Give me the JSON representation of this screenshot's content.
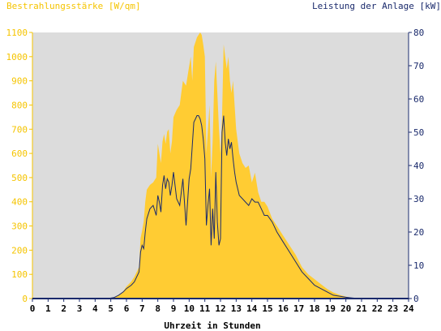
{
  "chart_data": {
    "type": "area",
    "title_left": "Bestrahlungsstärke [W/qm]",
    "title_right": "Leistung der Anlage [kW]",
    "xlabel": "Uhrzeit in Stunden",
    "x_ticks": [
      "0",
      "1",
      "2",
      "3",
      "4",
      "5",
      "6",
      "7",
      "8",
      "9",
      "10",
      "11",
      "12",
      "13",
      "14",
      "15",
      "16",
      "17",
      "18",
      "19",
      "20",
      "21",
      "22",
      "23",
      "24"
    ],
    "y_left_ticks": [
      "0",
      "100",
      "200",
      "300",
      "400",
      "500",
      "600",
      "700",
      "800",
      "900",
      "1000",
      "1100"
    ],
    "y_right_ticks": [
      "0",
      "10",
      "20",
      "30",
      "40",
      "50",
      "60",
      "70",
      "80"
    ],
    "xlim": [
      0,
      24
    ],
    "ylim_left": [
      0,
      1100
    ],
    "ylim_right": [
      0,
      80
    ],
    "grid": false,
    "colors": {
      "irradiance_fill": "#ffcc33",
      "power_line": "#1a2a6c",
      "plot_background": "#dcdcdc",
      "left_axis": "#f5c400",
      "right_axis": "#1a2a6c"
    },
    "series": [
      {
        "name": "Bestrahlungsstärke",
        "axis": "left",
        "x": [
          0,
          4.8,
          5.2,
          5.5,
          5.8,
          6.0,
          6.3,
          6.5,
          6.8,
          6.9,
          7.0,
          7.1,
          7.2,
          7.3,
          7.5,
          7.7,
          7.9,
          8.0,
          8.1,
          8.2,
          8.3,
          8.4,
          8.5,
          8.6,
          8.7,
          8.8,
          8.9,
          9.0,
          9.2,
          9.4,
          9.6,
          9.8,
          10.0,
          10.1,
          10.2,
          10.3,
          10.4,
          10.5,
          10.6,
          10.7,
          10.8,
          10.9,
          11.0,
          11.1,
          11.2,
          11.3,
          11.4,
          11.5,
          11.6,
          11.7,
          11.8,
          11.9,
          12.0,
          12.1,
          12.2,
          12.3,
          12.4,
          12.5,
          12.6,
          12.7,
          12.8,
          12.9,
          13.0,
          13.2,
          13.4,
          13.6,
          13.8,
          14.0,
          14.2,
          14.4,
          14.6,
          14.8,
          15.0,
          15.3,
          15.6,
          16.0,
          16.4,
          16.8,
          17.2,
          17.6,
          18.0,
          18.4,
          18.8,
          19.2,
          19.6,
          20.0,
          20.4,
          20.8,
          21.2,
          24
        ],
        "y": [
          0,
          0,
          5,
          15,
          30,
          50,
          70,
          90,
          130,
          250,
          280,
          320,
          400,
          450,
          470,
          480,
          500,
          640,
          600,
          560,
          650,
          680,
          640,
          690,
          700,
          600,
          650,
          750,
          780,
          800,
          900,
          880,
          960,
          1000,
          900,
          1040,
          1060,
          1080,
          1090,
          1100,
          1090,
          1050,
          1000,
          600,
          700,
          800,
          500,
          650,
          900,
          980,
          850,
          700,
          600,
          750,
          1050,
          1000,
          950,
          1000,
          900,
          850,
          900,
          800,
          700,
          600,
          560,
          540,
          550,
          480,
          520,
          440,
          400,
          400,
          380,
          330,
          300,
          260,
          220,
          180,
          130,
          100,
          80,
          60,
          40,
          25,
          15,
          8,
          3,
          0,
          0,
          0
        ]
      },
      {
        "name": "Leistung der Anlage",
        "axis": "right",
        "x": [
          0,
          4.8,
          5.2,
          5.5,
          5.8,
          6.0,
          6.3,
          6.5,
          6.8,
          6.9,
          7.0,
          7.1,
          7.2,
          7.3,
          7.5,
          7.7,
          7.9,
          8.0,
          8.1,
          8.2,
          8.3,
          8.4,
          8.5,
          8.6,
          8.7,
          8.8,
          8.9,
          9.0,
          9.2,
          9.4,
          9.6,
          9.8,
          10.0,
          10.1,
          10.2,
          10.3,
          10.4,
          10.5,
          10.6,
          10.7,
          10.8,
          10.9,
          11.0,
          11.1,
          11.2,
          11.3,
          11.4,
          11.5,
          11.6,
          11.7,
          11.8,
          11.9,
          12.0,
          12.1,
          12.2,
          12.3,
          12.4,
          12.5,
          12.6,
          12.7,
          12.8,
          12.9,
          13.0,
          13.2,
          13.4,
          13.6,
          13.8,
          14.0,
          14.2,
          14.4,
          14.6,
          14.8,
          15.0,
          15.3,
          15.6,
          16.0,
          16.4,
          16.8,
          17.2,
          17.6,
          18.0,
          18.4,
          18.8,
          19.2,
          19.6,
          20.0,
          20.4,
          20.8,
          21.2,
          24
        ],
        "y": [
          0,
          0,
          0.3,
          1,
          2,
          3,
          4,
          5,
          8,
          14,
          16,
          15,
          20,
          24,
          27,
          28,
          25,
          31,
          29,
          26,
          34,
          37,
          33,
          36,
          35,
          31,
          34,
          38,
          30,
          28,
          36,
          22,
          36,
          39,
          46,
          53,
          54,
          55,
          55,
          54,
          52,
          48,
          42,
          22,
          28,
          33,
          16,
          27,
          18,
          38,
          23,
          16,
          18,
          50,
          55,
          47,
          43,
          48,
          45,
          47,
          42,
          38,
          35,
          31,
          30,
          29,
          28,
          30,
          29,
          29,
          27,
          25,
          25,
          23,
          20,
          17,
          14,
          11,
          8,
          6,
          4,
          3,
          2,
          1,
          0.7,
          0.4,
          0.2,
          0,
          0,
          0
        ]
      }
    ]
  }
}
